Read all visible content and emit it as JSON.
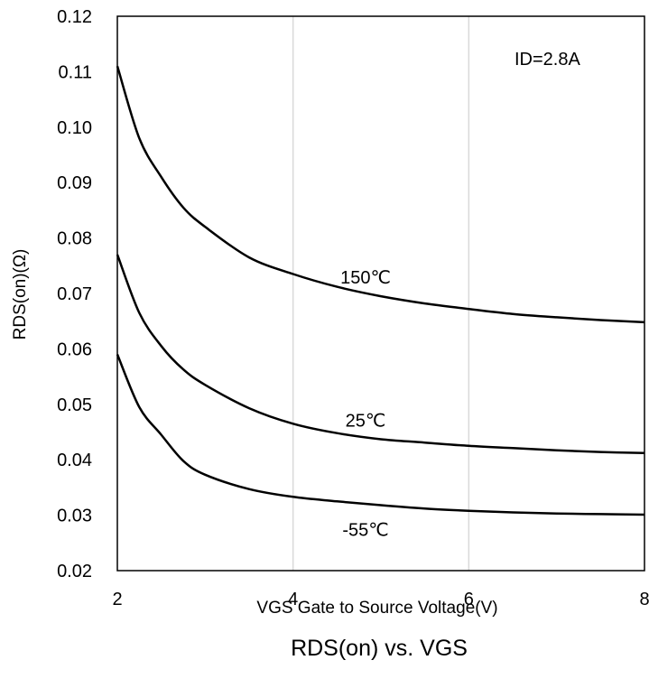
{
  "chart_data": {
    "type": "line",
    "title": "RDS(on) vs. VGS",
    "xlabel": "VGS Gate to Source Voltage(V)",
    "ylabel": "RDS(on)(Ω)",
    "xlim": [
      2,
      8
    ],
    "ylim": [
      0.02,
      0.12
    ],
    "x_ticks": [
      "2",
      "4",
      "6",
      "8"
    ],
    "y_ticks": [
      "0.02",
      "0.03",
      "0.04",
      "0.05",
      "0.06",
      "0.07",
      "0.08",
      "0.09",
      "0.10",
      "0.11",
      "0.12"
    ],
    "grid": "vertical",
    "annotation": "ID=2.8A",
    "x": [
      2.0,
      2.25,
      2.5,
      2.75,
      3.0,
      3.5,
      4.0,
      4.5,
      5.0,
      5.5,
      6.0,
      6.5,
      7.0,
      7.5,
      8.0
    ],
    "series": [
      {
        "name": "150℃",
        "values": [
          0.111,
          0.098,
          0.091,
          0.0855,
          0.082,
          0.0765,
          0.0735,
          0.0712,
          0.0695,
          0.0682,
          0.0672,
          0.0663,
          0.0657,
          0.0652,
          0.0648
        ]
      },
      {
        "name": "25℃",
        "values": [
          0.077,
          0.0665,
          0.0605,
          0.0563,
          0.0535,
          0.0493,
          0.0465,
          0.0448,
          0.0437,
          0.0431,
          0.0425,
          0.0421,
          0.0417,
          0.0414,
          0.0412
        ]
      },
      {
        "name": "-55℃",
        "values": [
          0.059,
          0.0495,
          0.0445,
          0.0398,
          0.0373,
          0.0347,
          0.0333,
          0.0325,
          0.0318,
          0.0312,
          0.0308,
          0.0305,
          0.0303,
          0.0302,
          0.0301
        ]
      }
    ]
  }
}
